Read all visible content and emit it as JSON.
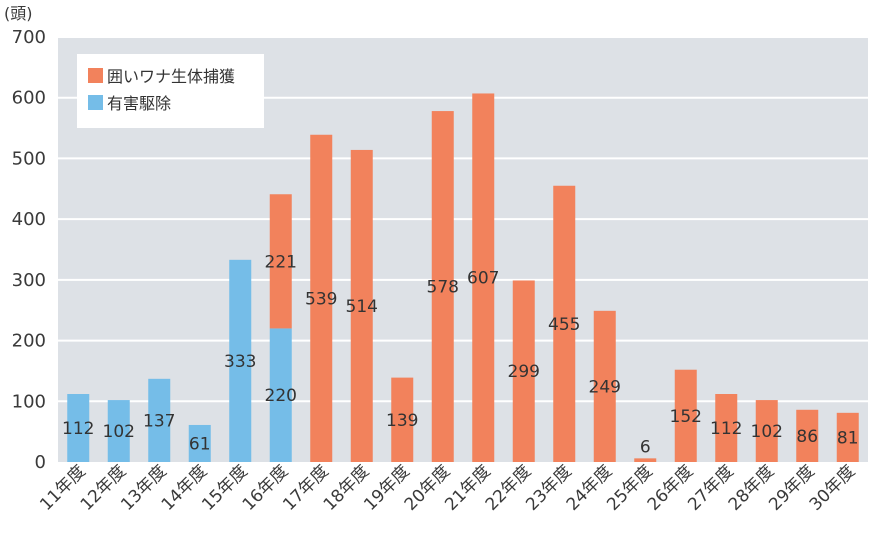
{
  "chart_data": {
    "type": "bar",
    "stacked": true,
    "y_unit": "(頭)",
    "ylim": [
      0,
      700
    ],
    "yticks": [
      0,
      100,
      200,
      300,
      400,
      500,
      600,
      700
    ],
    "grid": true,
    "legend_position": "top-left",
    "categories": [
      "11年度",
      "12年度",
      "13年度",
      "14年度",
      "15年度",
      "16年度",
      "17年度",
      "18年度",
      "19年度",
      "20年度",
      "21年度",
      "22年度",
      "23年度",
      "24年度",
      "25年度",
      "26年度",
      "27年度",
      "28年度",
      "29年度",
      "30年度"
    ],
    "series": [
      {
        "name": "有害駆除",
        "color": "#75bde8",
        "values": [
          112,
          102,
          137,
          61,
          333,
          220,
          0,
          0,
          0,
          0,
          0,
          0,
          0,
          0,
          0,
          0,
          0,
          0,
          0,
          0
        ]
      },
      {
        "name": "囲いワナ生体捕獲",
        "color": "#f2825c",
        "values": [
          0,
          0,
          0,
          0,
          0,
          221,
          539,
          514,
          139,
          578,
          607,
          299,
          455,
          249,
          6,
          152,
          112,
          102,
          86,
          81
        ]
      }
    ],
    "legend_order": [
      1,
      0
    ],
    "plot_background": "#dde1e6"
  }
}
